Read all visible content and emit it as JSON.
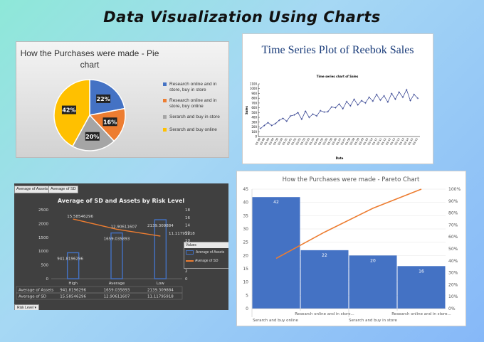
{
  "page_title": "Data Visualization Using Charts",
  "chart_data": [
    {
      "type": "pie",
      "title": "How the Purchases were made - Pie chart",
      "categories": [
        "Research online and in store, buy in store",
        "Research online and in store, buy online",
        "Serarch and buy in store",
        "Serarch and buy online"
      ],
      "values": [
        22,
        16,
        20,
        42
      ],
      "value_labels": [
        "22%",
        "16%",
        "20%",
        "42%"
      ],
      "colors": [
        "#4472c4",
        "#ed7d31",
        "#a5a5a5",
        "#ffc000"
      ],
      "legend": "right"
    },
    {
      "type": "line",
      "title": "Time Series Plot of Reebok Sales",
      "subtitle": "Time series chart of Sales",
      "xlabel": "Date",
      "ylabel": "Sales",
      "ylim": [
        0,
        1100
      ],
      "yticks": [
        0,
        100,
        200,
        300,
        400,
        500,
        600,
        700,
        800,
        900,
        1000,
        1100
      ],
      "x_tick_labels": [
        "Q1-98",
        "Q3-98",
        "Q1-99",
        "Q3-99",
        "Q1-00",
        "Q3-00",
        "Q1-01",
        "Q3-01",
        "Q1-02",
        "Q3-02",
        "Q1-03",
        "Q3-03",
        "Q1-04",
        "Q3-04",
        "Q1-05",
        "Q3-05",
        "Q1-06",
        "Q3-06",
        "Q1-07",
        "Q3-07",
        "Q1-08",
        "Q3-08",
        "Q1-09",
        "Q3-09",
        "Q1-10",
        "Q3-10",
        "Q1-11",
        "Q3-11",
        "Q1-12",
        "Q3-12",
        "Q1-13",
        "Q3-13",
        "Q1-14",
        "Q3-14",
        "Q1-15",
        "Q3-15"
      ],
      "values": [
        170,
        230,
        290,
        230,
        270,
        340,
        380,
        320,
        430,
        450,
        500,
        360,
        530,
        400,
        470,
        430,
        540,
        510,
        520,
        620,
        600,
        680,
        580,
        730,
        640,
        780,
        660,
        750,
        700,
        820,
        740,
        880,
        760,
        850,
        720,
        900,
        780,
        930,
        820,
        980,
        750,
        880,
        800
      ]
    },
    {
      "type": "bar",
      "title": "Average of SD and Assets by Risk Level",
      "categories": [
        "High",
        "Average",
        "Low"
      ],
      "series": [
        {
          "name": "Average of Assets",
          "values": [
            941.8196296,
            1659.035893,
            2139.309884
          ],
          "axis": "left"
        },
        {
          "name": "Average of SD",
          "values": [
            15.58546296,
            12.90611607,
            11.11795918
          ],
          "axis": "right",
          "type": "line"
        }
      ],
      "y_left_lim": [
        0,
        2500
      ],
      "y_left_ticks": [
        0,
        500,
        1000,
        1500,
        2000,
        2500
      ],
      "y_right_lim": [
        0,
        18
      ],
      "y_right_ticks": [
        0,
        2,
        4,
        6,
        8,
        10,
        12,
        14,
        16,
        18
      ],
      "point_labels_assets": [
        "941.8196296",
        "1659.035893",
        "2139.309884"
      ],
      "point_labels_sd": [
        "15.58546296",
        "12.90611607",
        "11.11795918"
      ],
      "table_rows": [
        {
          "label": "Average of Assets",
          "cells": [
            "941.8196296",
            "1659.035893",
            "2139.309884"
          ]
        },
        {
          "label": "Average of SD",
          "cells": [
            "15.58546296",
            "12.90611607",
            "11.11795918"
          ]
        }
      ],
      "legend_header": "Values",
      "tabs": [
        "Average of Assets",
        "Average of SD"
      ],
      "filter_button": "Risk Level"
    },
    {
      "type": "bar",
      "title": "How the Purchases were made - Pareto Chart",
      "categories": [
        "Serarch and buy online",
        "Research online and in store...",
        "Serarch and buy in store",
        "Research online and in store..."
      ],
      "values": [
        42,
        22,
        20,
        16
      ],
      "cumulative_percent": [
        42,
        64,
        84,
        100
      ],
      "ylim": [
        0,
        45
      ],
      "yticks": [
        0,
        5,
        10,
        15,
        20,
        25,
        30,
        35,
        40,
        45
      ],
      "y2_ticks": [
        "0%",
        "10%",
        "20%",
        "30%",
        "40%",
        "50%",
        "60%",
        "70%",
        "80%",
        "90%",
        "100%"
      ],
      "colors": {
        "bar": "#4472c4",
        "line": "#ed7d31"
      }
    }
  ]
}
